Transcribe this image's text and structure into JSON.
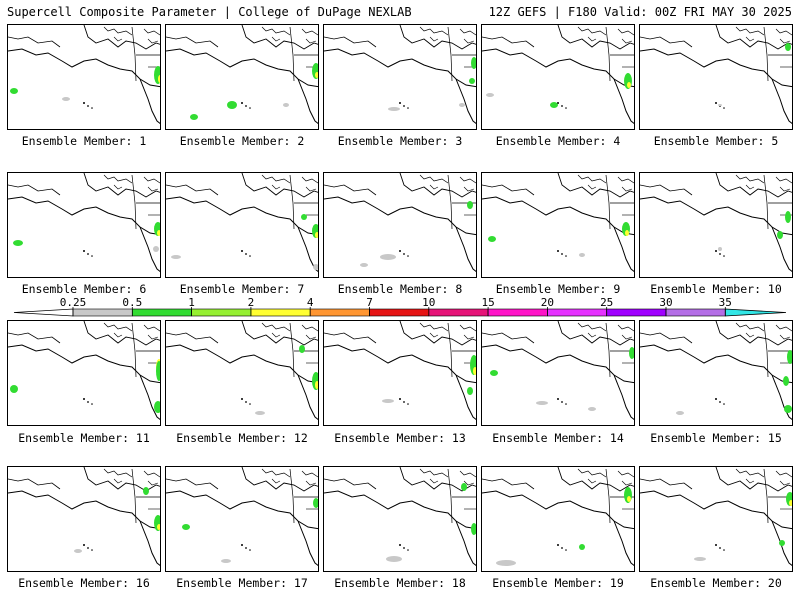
{
  "header": {
    "left": "Supercell Composite Parameter | College of DuPage NEXLAB",
    "right": "12Z GEFS | F180 Valid: 00Z FRI MAY 30 2025"
  },
  "member_label_prefix": "Ensemble Member:",
  "members": [
    {
      "id": "1",
      "label": "Ensemble Member: 1"
    },
    {
      "id": "2",
      "label": "Ensemble Member: 2"
    },
    {
      "id": "3",
      "label": "Ensemble Member: 3"
    },
    {
      "id": "4",
      "label": "Ensemble Member: 4"
    },
    {
      "id": "5",
      "label": "Ensemble Member: 5"
    },
    {
      "id": "6",
      "label": "Ensemble Member: 6"
    },
    {
      "id": "7",
      "label": "Ensemble Member: 7"
    },
    {
      "id": "8",
      "label": "Ensemble Member: 8"
    },
    {
      "id": "9",
      "label": "Ensemble Member: 9"
    },
    {
      "id": "10",
      "label": "Ensemble Member: 10"
    },
    {
      "id": "11",
      "label": "Ensemble Member: 11"
    },
    {
      "id": "12",
      "label": "Ensemble Member: 12"
    },
    {
      "id": "13",
      "label": "Ensemble Member: 13"
    },
    {
      "id": "14",
      "label": "Ensemble Member: 14"
    },
    {
      "id": "15",
      "label": "Ensemble Member: 15"
    },
    {
      "id": "16",
      "label": "Ensemble Member: 16"
    },
    {
      "id": "17",
      "label": "Ensemble Member: 17"
    },
    {
      "id": "18",
      "label": "Ensemble Member: 18"
    },
    {
      "id": "19",
      "label": "Ensemble Member: 19"
    },
    {
      "id": "20",
      "label": "Ensemble Member: 20"
    }
  ],
  "colorbar": {
    "ticks": [
      "0.25",
      "0.5",
      "1",
      "2",
      "4",
      "7",
      "10",
      "15",
      "20",
      "25",
      "30",
      "35"
    ],
    "colors": [
      "#c8c8c8",
      "#32dc32",
      "#96f032",
      "#ffff32",
      "#ff9632",
      "#e61414",
      "#e61478",
      "#ff14c8",
      "#e632ff",
      "#a000ff",
      "#b46ee6"
    ],
    "under_color": "#ffffff",
    "over_color": "#32e6e6"
  }
}
